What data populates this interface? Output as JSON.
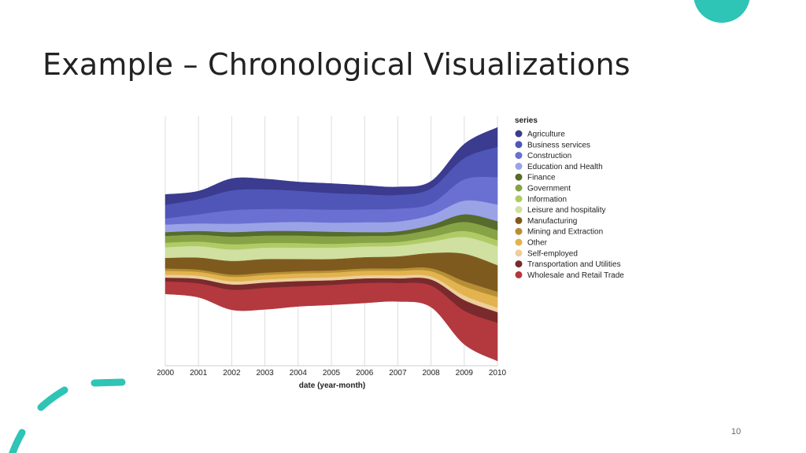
{
  "slide": {
    "title": "Example – Chronological Visualizations",
    "page_number": "10",
    "accent_color": "#2ec4b6"
  },
  "chart_data": {
    "type": "area",
    "stacked": true,
    "offset": "center",
    "xlabel": "date (year-month)",
    "ylabel": "",
    "x": [
      "2000",
      "2001",
      "2002",
      "2003",
      "2004",
      "2005",
      "2006",
      "2007",
      "2008",
      "2009",
      "2010"
    ],
    "x_tick_labels": [
      "2000",
      "2001",
      "2002",
      "2003",
      "2004",
      "2005",
      "2006",
      "2007",
      "2008",
      "2009",
      "2010"
    ],
    "grid": true,
    "legend": {
      "title": "series",
      "position": "right"
    },
    "series": [
      {
        "name": "Agriculture",
        "color": "#3b3b8f",
        "values": [
          14,
          11,
          16,
          14,
          12,
          13,
          12,
          11,
          10,
          19,
          26
        ]
      },
      {
        "name": "Business services",
        "color": "#4f56b8",
        "values": [
          18,
          20,
          26,
          26,
          24,
          22,
          20,
          18,
          20,
          28,
          40
        ]
      },
      {
        "name": "Construction",
        "color": "#6a6fd2",
        "values": [
          8,
          12,
          18,
          18,
          17,
          17,
          17,
          17,
          15,
          28,
          36
        ]
      },
      {
        "name": "Education and Health",
        "color": "#9aa3e6",
        "values": [
          10,
          10,
          11,
          11,
          12,
          12,
          13,
          13,
          13,
          18,
          22
        ]
      },
      {
        "name": "Finance",
        "color": "#566b2c",
        "values": [
          5,
          5,
          6,
          6,
          6,
          6,
          5,
          5,
          6,
          10,
          12
        ]
      },
      {
        "name": "Government",
        "color": "#86a346",
        "values": [
          9,
          9,
          10,
          10,
          10,
          10,
          9,
          9,
          10,
          12,
          13
        ]
      },
      {
        "name": "Information",
        "color": "#b0cb66",
        "values": [
          6,
          6,
          7,
          6,
          6,
          5,
          5,
          5,
          6,
          8,
          8
        ]
      },
      {
        "name": "Leisure and hospitality",
        "color": "#cfe0a0",
        "values": [
          14,
          15,
          15,
          15,
          15,
          15,
          14,
          14,
          15,
          22,
          25
        ]
      },
      {
        "name": "Manufacturing",
        "color": "#7f5a1e",
        "values": [
          14,
          16,
          18,
          18,
          16,
          15,
          15,
          16,
          20,
          36,
          35
        ]
      },
      {
        "name": "Mining and Extraction",
        "color": "#b68f35",
        "values": [
          3,
          3,
          3,
          3,
          3,
          3,
          3,
          3,
          4,
          7,
          7
        ]
      },
      {
        "name": "Other",
        "color": "#e2b34e",
        "values": [
          5,
          5,
          6,
          6,
          6,
          6,
          6,
          6,
          7,
          12,
          14
        ]
      },
      {
        "name": "Self-employed",
        "color": "#eccf9b",
        "values": [
          4,
          4,
          4,
          4,
          4,
          4,
          4,
          4,
          4,
          6,
          6
        ]
      },
      {
        "name": "Transportation and Utilities",
        "color": "#7a2a2c",
        "values": [
          5,
          6,
          7,
          7,
          7,
          6,
          6,
          6,
          8,
          14,
          14
        ]
      },
      {
        "name": "Wholesale and Retail Trade",
        "color": "#b3393f",
        "values": [
          16,
          18,
          26,
          28,
          26,
          26,
          26,
          24,
          28,
          44,
          50
        ]
      }
    ]
  }
}
